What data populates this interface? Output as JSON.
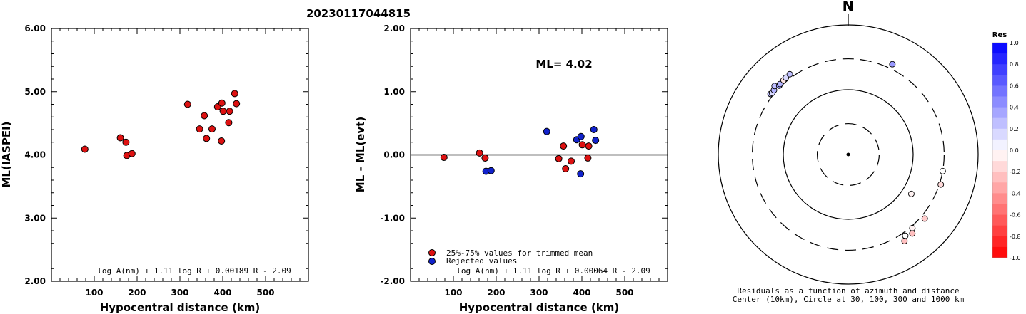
{
  "title": "20230117044815",
  "chart_data": [
    {
      "type": "scatter",
      "xlabel": "Hypocentral distance (km)",
      "ylabel": "ML(IASPEI)",
      "xlim": [
        0,
        600
      ],
      "ylim": [
        2.0,
        6.0
      ],
      "x_ticks": [
        100,
        200,
        300,
        400,
        500
      ],
      "y_ticks": [
        "2.00",
        "3.00",
        "4.00",
        "5.00",
        "6.00"
      ],
      "formula": "log A(nm) + 1.11 log R + 0.00189 R - 2.09",
      "series": [
        {
          "color": "#dd1111",
          "points": [
            [
              78,
              4.09
            ],
            [
              161,
              4.27
            ],
            [
              174,
              4.2
            ],
            [
              176,
              3.99
            ],
            [
              188,
              4.02
            ],
            [
              318,
              4.8
            ],
            [
              346,
              4.41
            ],
            [
              357,
              4.62
            ],
            [
              362,
              4.26
            ],
            [
              375,
              4.41
            ],
            [
              388,
              4.76
            ],
            [
              397,
              4.22
            ],
            [
              398,
              4.82
            ],
            [
              401,
              4.69
            ],
            [
              414,
              4.51
            ],
            [
              416,
              4.69
            ],
            [
              428,
              4.97
            ],
            [
              432,
              4.81
            ]
          ]
        }
      ]
    },
    {
      "type": "scatter",
      "xlabel": "Hypocentral distance (km)",
      "ylabel": "ML - ML(evt)",
      "xlim": [
        0,
        600
      ],
      "ylim": [
        -2.0,
        2.0
      ],
      "x_ticks": [
        100,
        200,
        300,
        400,
        500
      ],
      "y_ticks": [
        "-2.00",
        "-1.00",
        "0.00",
        "1.00",
        "2.00"
      ],
      "zero_line": 0,
      "ml_label": "ML= 4.02",
      "formula": "log A(nm) + 1.11 log R + 0.00064 R - 2.09",
      "legend_placement": "bottom-left",
      "series": [
        {
          "name": "25%-75% values for trimmed mean",
          "color": "#dd1111",
          "points": [
            [
              78,
              -0.04
            ],
            [
              161,
              0.03
            ],
            [
              174,
              -0.05
            ],
            [
              346,
              -0.06
            ],
            [
              357,
              0.14
            ],
            [
              362,
              -0.22
            ],
            [
              375,
              -0.1
            ],
            [
              401,
              0.16
            ],
            [
              414,
              -0.05
            ],
            [
              416,
              0.14
            ]
          ]
        },
        {
          "name": "Rejected values",
          "color": "#1122cc",
          "points": [
            [
              176,
              -0.26
            ],
            [
              188,
              -0.25
            ],
            [
              318,
              0.37
            ],
            [
              388,
              0.24
            ],
            [
              397,
              -0.3
            ],
            [
              398,
              0.29
            ],
            [
              428,
              0.4
            ],
            [
              432,
              0.23
            ]
          ]
        }
      ]
    },
    {
      "type": "polar-scatter",
      "north_label": "N",
      "caption_line1": "Residuals as a function of azimuth and distance",
      "caption_line2": "Center (10km), Circle at 30, 100, 300 and 1000 km",
      "rings_km": [
        30,
        100,
        300,
        1000
      ],
      "ring_styles": [
        "dashed",
        "solid",
        "dashed",
        "solid"
      ],
      "points": [
        {
          "az": 308,
          "dist": 330,
          "res": 0.25
        },
        {
          "az": 309,
          "dist": 322,
          "res": 0.15
        },
        {
          "az": 311,
          "dist": 327,
          "res": 0.3
        },
        {
          "az": 313,
          "dist": 355,
          "res": 0.25
        },
        {
          "az": 315,
          "dist": 318,
          "res": 0.4
        },
        {
          "az": 316,
          "dist": 325,
          "res": 0.3
        },
        {
          "az": 319,
          "dist": 330,
          "res": -0.1
        },
        {
          "az": 321,
          "dist": 335,
          "res": 0.15
        },
        {
          "az": 324,
          "dist": 340,
          "res": 0.25
        },
        {
          "az": 26,
          "dist": 355,
          "res": 0.4
        },
        {
          "az": 100,
          "dist": 300,
          "res": 0.0
        },
        {
          "az": 108,
          "dist": 315,
          "res": -0.15
        },
        {
          "az": 122,
          "dist": 140,
          "res": -0.05
        },
        {
          "az": 130,
          "dist": 345,
          "res": -0.2
        },
        {
          "az": 139,
          "dist": 320,
          "res": -0.05
        },
        {
          "az": 141,
          "dist": 370,
          "res": -0.25
        },
        {
          "az": 145,
          "dist": 340,
          "res": 0.0
        },
        {
          "az": 147,
          "dist": 390,
          "res": -0.25
        }
      ]
    }
  ],
  "colorbar": {
    "title": "Res",
    "labels": [
      "1.0",
      "0.8",
      "0.6",
      "0.4",
      "0.2",
      "0.0",
      "-0.2",
      "-0.4",
      "-0.6",
      "-0.8",
      "-1.0"
    ]
  }
}
